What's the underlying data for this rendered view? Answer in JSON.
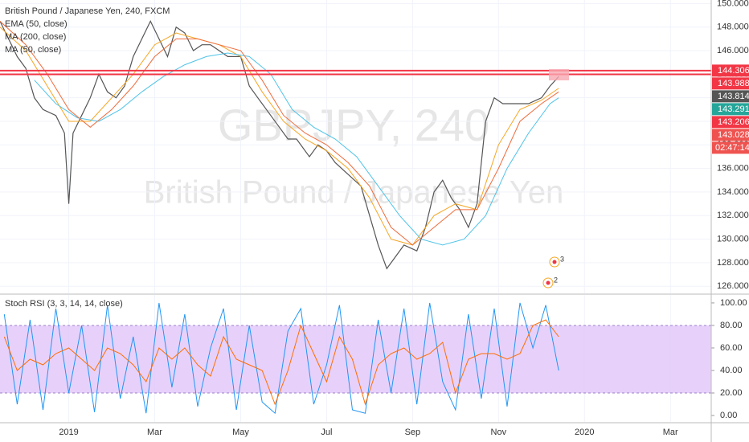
{
  "chart_data": {
    "type": "line",
    "title": "British Pound / Japanese Yen, 240, FXCM",
    "watermark": "GBPJPY, 240",
    "watermark_subtitle": "British Pound / Japanese Yen",
    "xlim": [
      -1.6,
      14.95
    ],
    "xticks": [
      {
        "value": 0,
        "label": "2019"
      },
      {
        "value": 2,
        "label": "Mar"
      },
      {
        "value": 4,
        "label": "May"
      },
      {
        "value": 6,
        "label": "Jul"
      },
      {
        "value": 8,
        "label": "Sep"
      },
      {
        "value": 10,
        "label": "Nov"
      },
      {
        "value": 12,
        "label": "2020"
      },
      {
        "value": 14,
        "label": "Mar"
      }
    ],
    "ylim": [
      125.4,
      150.3
    ],
    "yticks": [
      {
        "value": 126,
        "label": "126.000"
      },
      {
        "value": 128,
        "label": "128.000"
      },
      {
        "value": 130,
        "label": "130.000"
      },
      {
        "value": 132,
        "label": "132.000"
      },
      {
        "value": 134,
        "label": "134.000"
      },
      {
        "value": 136,
        "label": "136.000"
      },
      {
        "value": 138,
        "label": "138.000"
      },
      {
        "value": 140,
        "label": "140.000"
      },
      {
        "value": 142,
        "label": "142.000"
      },
      {
        "value": 144,
        "label": "144.000"
      },
      {
        "value": 146,
        "label": "146.000"
      },
      {
        "value": 148,
        "label": "148.000"
      },
      {
        "value": 150,
        "label": "150.000"
      }
    ],
    "grid": true,
    "price": {
      "color": "#555555",
      "x": [
        -1.6,
        -1.4,
        -1.2,
        -1.0,
        -0.8,
        -0.6,
        -0.3,
        -0.1,
        0.0,
        0.1,
        0.3,
        0.5,
        0.7,
        0.9,
        1.1,
        1.3,
        1.5,
        1.7,
        1.9,
        2.1,
        2.3,
        2.5,
        2.7,
        2.9,
        3.1,
        3.3,
        3.5,
        3.7,
        4.0,
        4.2,
        4.4,
        4.6,
        4.9,
        5.1,
        5.3,
        5.6,
        5.8,
        6.0,
        6.2,
        6.5,
        6.8,
        7.0,
        7.2,
        7.4,
        7.6,
        7.8,
        8.1,
        8.3,
        8.5,
        8.7,
        8.9,
        9.1,
        9.3,
        9.5,
        9.7,
        9.9,
        10.1,
        10.4,
        10.7,
        11.0,
        11.2,
        11.4
      ],
      "values": [
        148.5,
        147,
        145.5,
        144.5,
        142,
        141,
        140.5,
        139,
        133,
        139,
        140.5,
        142,
        144,
        142.5,
        142,
        143,
        145.5,
        147,
        148.5,
        147,
        145.5,
        148,
        147.5,
        146,
        146.5,
        146.5,
        146,
        145.5,
        145.5,
        143,
        142,
        141,
        139.5,
        138.5,
        138.5,
        137,
        138,
        137.5,
        136.5,
        135.5,
        134.5,
        132,
        129.5,
        127.5,
        128.5,
        129.5,
        129,
        131,
        134,
        135,
        133.5,
        132.5,
        131,
        133,
        140,
        142,
        141.5,
        141.5,
        141.5,
        142,
        143,
        143.8
      ]
    },
    "series": [
      {
        "name": "EMA (50, close)",
        "color": "#f5a623",
        "x": [
          -1.6,
          -1,
          -0.5,
          0,
          0.5,
          1,
          1.5,
          2,
          2.5,
          3,
          3.5,
          4,
          4.5,
          5,
          5.5,
          6,
          6.5,
          7,
          7.5,
          8,
          8.5,
          9,
          9.5,
          10,
          10.5,
          11,
          11.4
        ],
        "values": [
          148,
          146,
          143,
          140,
          140,
          142,
          144,
          146.5,
          147.5,
          147,
          146.5,
          145.5,
          142.5,
          140,
          138.5,
          137.5,
          136,
          133.5,
          130,
          129.5,
          132,
          133,
          132.5,
          138,
          141,
          141.8,
          142.8
        ]
      },
      {
        "name": "MA (200, close)",
        "color": "#4fc3e8",
        "x": [
          -0.8,
          -0.3,
          0.2,
          0.7,
          1.2,
          1.7,
          2.2,
          2.7,
          3.2,
          3.7,
          4.2,
          4.7,
          5.2,
          5.7,
          6.2,
          6.7,
          7.2,
          7.7,
          8.2,
          8.7,
          9.2,
          9.7,
          10.2,
          10.7,
          11.2,
          11.4
        ],
        "values": [
          143.5,
          141.5,
          140.3,
          140,
          141,
          142.5,
          143.8,
          144.8,
          145.5,
          145.8,
          145.5,
          144,
          141,
          139.5,
          138.5,
          137,
          134.5,
          132,
          130,
          129.5,
          130,
          132,
          136,
          139,
          141.5,
          142
        ]
      },
      {
        "name": "MA (50, close)",
        "color": "#ef6c3c",
        "x": [
          -1.6,
          -1,
          -0.5,
          0,
          0.5,
          1,
          1.5,
          2,
          2.5,
          3,
          3.5,
          4,
          4.5,
          5,
          5.5,
          6,
          6.5,
          7,
          7.5,
          8,
          8.5,
          9,
          9.5,
          10,
          10.5,
          11,
          11.4
        ],
        "values": [
          148.5,
          146.5,
          144,
          141,
          139.5,
          141,
          143,
          145.5,
          147,
          147,
          146.5,
          146,
          143.5,
          140.5,
          139,
          138,
          136.5,
          134.5,
          131,
          129.5,
          131,
          132.5,
          132.5,
          136,
          140,
          141.5,
          142.5
        ]
      }
    ],
    "price_labels": [
      {
        "value": 144.306,
        "label": "144.306",
        "color": "#f23645",
        "line": true
      },
      {
        "value": 143.988,
        "label": "143.988",
        "color": "#f23645",
        "line": true
      },
      {
        "value": 143.814,
        "label": "143.814",
        "color": "#555555"
      },
      {
        "value": 143.291,
        "label": "143.291",
        "color": "#26a69a"
      },
      {
        "value": 143.206,
        "label": "143.206",
        "color": "#f23645"
      },
      {
        "value": 143.028,
        "label": "143.028",
        "color": "#ef5350"
      }
    ],
    "countdown": "02:47:14",
    "annotations": [
      "3",
      "2"
    ],
    "oscillator": {
      "title": "Stoch RSI (3, 3, 14, 14, close)",
      "ylim": [
        -5.7,
        107.1
      ],
      "yticks": [
        {
          "value": 0,
          "label": "0.00"
        },
        {
          "value": 20,
          "label": "20.00"
        },
        {
          "value": 40,
          "label": "40.00"
        },
        {
          "value": 60,
          "label": "60.00"
        },
        {
          "value": 80,
          "label": "80.00"
        },
        {
          "value": 100,
          "label": "100.00"
        }
      ],
      "band": [
        20,
        80
      ],
      "band_color": "#e1c6fa",
      "x": [
        -1.5,
        -1.2,
        -0.9,
        -0.6,
        -0.3,
        0,
        0.3,
        0.6,
        0.9,
        1.2,
        1.5,
        1.8,
        2.1,
        2.4,
        2.7,
        3.0,
        3.3,
        3.6,
        3.9,
        4.2,
        4.5,
        4.8,
        5.1,
        5.4,
        5.7,
        6.0,
        6.3,
        6.6,
        6.9,
        7.2,
        7.5,
        7.8,
        8.1,
        8.4,
        8.7,
        9.0,
        9.3,
        9.6,
        9.9,
        10.2,
        10.5,
        10.8,
        11.1,
        11.4
      ],
      "series": [
        {
          "color": "#2196f3",
          "values": [
            90,
            10,
            85,
            5,
            95,
            20,
            80,
            3,
            98,
            15,
            70,
            2,
            100,
            25,
            90,
            8,
            60,
            95,
            5,
            80,
            12,
            2,
            75,
            95,
            10,
            45,
            98,
            5,
            2,
            85,
            20,
            95,
            10,
            100,
            30,
            5,
            90,
            15,
            95,
            8,
            100,
            60,
            98,
            40
          ]
        },
        {
          "color": "#ff6d00",
          "values": [
            70,
            40,
            50,
            45,
            55,
            60,
            50,
            40,
            60,
            55,
            45,
            30,
            60,
            50,
            60,
            45,
            35,
            70,
            50,
            45,
            40,
            10,
            40,
            80,
            55,
            30,
            70,
            50,
            10,
            45,
            55,
            60,
            50,
            55,
            65,
            20,
            50,
            55,
            55,
            50,
            55,
            80,
            85,
            70
          ]
        }
      ]
    }
  }
}
